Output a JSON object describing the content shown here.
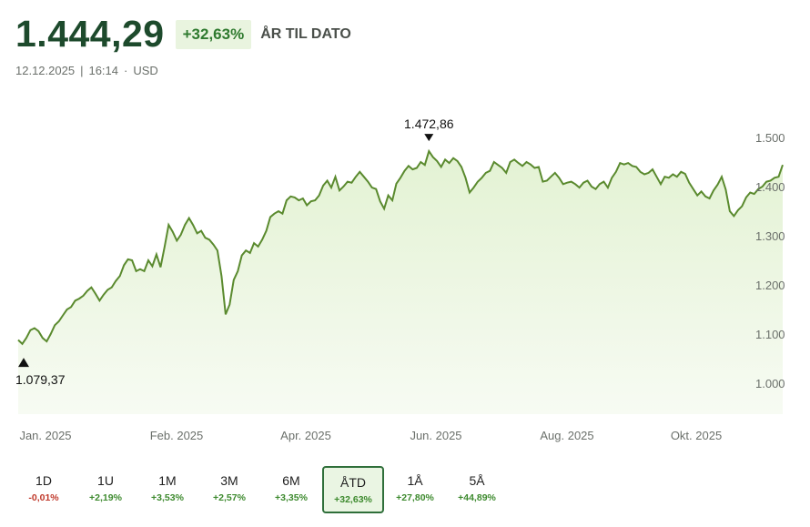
{
  "header": {
    "price": "1.444,29",
    "change": "+32,63%",
    "period_label": "ÅR TIL DATO"
  },
  "meta": {
    "date": "12.12.2025",
    "time": "16:14",
    "currency": "USD"
  },
  "colors": {
    "line": "#5a8a2e",
    "fill": "#eaf6de",
    "accent_dark": "#1d4a2c",
    "positive": "#3d8a2e",
    "negative": "#c0392b"
  },
  "chart_data": {
    "type": "area",
    "x_tick_labels": [
      "Jan. 2025",
      "Feb. 2025",
      "Apr. 2025",
      "Jun. 2025",
      "Aug. 2025",
      "Okt. 2025"
    ],
    "y_ticks": [
      "1.500",
      "1.400",
      "1.300",
      "1.200",
      "1.100",
      "1.000"
    ],
    "y_tick_values": [
      1500,
      1400,
      1300,
      1200,
      1100,
      1000
    ],
    "ylim": [
      980,
      1510
    ],
    "annotations": {
      "high": {
        "label": "1.472,86",
        "value": 1472.86
      },
      "low": {
        "label": "1.079,37",
        "value": 1079.37
      }
    },
    "series": [
      {
        "values": [
          1088,
          1080,
          1092,
          1108,
          1112,
          1106,
          1092,
          1085,
          1100,
          1118,
          1126,
          1138,
          1150,
          1155,
          1168,
          1172,
          1178,
          1188,
          1195,
          1182,
          1168,
          1180,
          1190,
          1195,
          1208,
          1218,
          1240,
          1252,
          1250,
          1228,
          1232,
          1228,
          1250,
          1238,
          1262,
          1236,
          1278,
          1322,
          1308,
          1290,
          1302,
          1322,
          1336,
          1322,
          1305,
          1310,
          1296,
          1292,
          1282,
          1270,
          1218,
          1140,
          1160,
          1210,
          1228,
          1260,
          1270,
          1265,
          1285,
          1278,
          1292,
          1310,
          1338,
          1345,
          1350,
          1345,
          1372,
          1380,
          1378,
          1372,
          1376,
          1362,
          1370,
          1372,
          1382,
          1402,
          1412,
          1398,
          1420,
          1392,
          1400,
          1410,
          1408,
          1420,
          1430,
          1420,
          1410,
          1398,
          1395,
          1370,
          1355,
          1382,
          1372,
          1406,
          1418,
          1432,
          1442,
          1435,
          1438,
          1450,
          1444,
          1472,
          1460,
          1452,
          1440,
          1455,
          1448,
          1458,
          1452,
          1440,
          1418,
          1388,
          1398,
          1410,
          1418,
          1428,
          1432,
          1450,
          1444,
          1438,
          1428,
          1450,
          1455,
          1448,
          1442,
          1450,
          1445,
          1438,
          1440,
          1410,
          1412,
          1420,
          1428,
          1418,
          1405,
          1408,
          1410,
          1405,
          1398,
          1408,
          1412,
          1400,
          1395,
          1405,
          1410,
          1398,
          1418,
          1430,
          1448,
          1445,
          1448,
          1442,
          1440,
          1430,
          1425,
          1428,
          1435,
          1420,
          1405,
          1420,
          1418,
          1425,
          1420,
          1430,
          1426,
          1408,
          1395,
          1382,
          1390,
          1380,
          1376,
          1392,
          1404,
          1420,
          1394,
          1350,
          1340,
          1352,
          1360,
          1378,
          1388,
          1385,
          1395,
          1400,
          1410,
          1412,
          1418,
          1420,
          1444
        ]
      }
    ]
  },
  "tabs": [
    {
      "label": "1D",
      "change": "-0,01%",
      "sign": "neg"
    },
    {
      "label": "1U",
      "change": "+2,19%",
      "sign": "pos"
    },
    {
      "label": "1M",
      "change": "+3,53%",
      "sign": "pos"
    },
    {
      "label": "3M",
      "change": "+2,57%",
      "sign": "pos"
    },
    {
      "label": "6M",
      "change": "+3,35%",
      "sign": "pos"
    },
    {
      "label": "ÅTD",
      "change": "+32,63%",
      "sign": "pos",
      "active": true
    },
    {
      "label": "1Å",
      "change": "+27,80%",
      "sign": "pos"
    },
    {
      "label": "5Å",
      "change": "+44,89%",
      "sign": "pos"
    }
  ]
}
